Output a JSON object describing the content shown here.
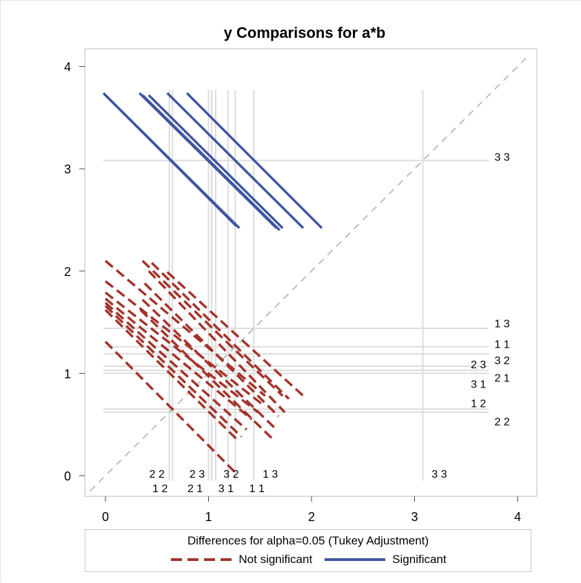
{
  "chart_data": {
    "type": "diffogram",
    "title": "y Comparisons for a*b",
    "xlim": [
      -0.2,
      4.1
    ],
    "ylim": [
      -0.2,
      4.15
    ],
    "xticks": [
      0,
      1,
      2,
      3,
      4
    ],
    "yticks": [
      0,
      1,
      2,
      3,
      4
    ],
    "grid": false,
    "colors": {
      "significant": "#3f56a0",
      "not_significant": "#a3342c",
      "reference_line": "#b0b0b0",
      "level_line": "#dcdcdc",
      "frame": "#b8b8b8"
    },
    "levels": [
      {
        "label": "1 1",
        "mean": 1.26
      },
      {
        "label": "1 2",
        "mean": 0.65
      },
      {
        "label": "1 3",
        "mean": 1.44
      },
      {
        "label": "2 1",
        "mean": 1.0
      },
      {
        "label": "2 2",
        "mean": 0.62
      },
      {
        "label": "2 3",
        "mean": 1.07
      },
      {
        "label": "3 1",
        "mean": 1.03
      },
      {
        "label": "3 2",
        "mean": 1.19
      },
      {
        "label": "3 3",
        "mean": 3.08
      }
    ],
    "significant_segments": [
      {
        "x1": -0.02,
        "y1": 3.74,
        "x2": 1.3,
        "y2": 2.42
      },
      {
        "x1": 0.0,
        "y1": 3.72,
        "x2": 1.27,
        "y2": 2.44
      },
      {
        "x1": 0.33,
        "y1": 3.74,
        "x2": 1.66,
        "y2": 2.42
      },
      {
        "x1": 0.36,
        "y1": 3.72,
        "x2": 1.69,
        "y2": 2.4
      },
      {
        "x1": 0.42,
        "y1": 3.72,
        "x2": 1.72,
        "y2": 2.42
      },
      {
        "x1": 0.6,
        "y1": 3.74,
        "x2": 1.92,
        "y2": 2.42
      },
      {
        "x1": 0.79,
        "y1": 3.74,
        "x2": 2.1,
        "y2": 2.42
      }
    ],
    "nonsignificant_segments": [
      {
        "x1": 0.0,
        "y1": 1.31,
        "x2": 1.28,
        "y2": 0.01
      },
      {
        "x1": 0.0,
        "y1": 1.62,
        "x2": 1.3,
        "y2": 0.33
      },
      {
        "x1": 0.0,
        "y1": 1.66,
        "x2": 1.32,
        "y2": 0.38
      },
      {
        "x1": 0.0,
        "y1": 1.69,
        "x2": 1.37,
        "y2": 0.45
      },
      {
        "x1": 0.0,
        "y1": 1.73,
        "x2": 1.42,
        "y2": 0.55
      },
      {
        "x1": 0.0,
        "y1": 1.79,
        "x2": 1.48,
        "y2": 0.62
      },
      {
        "x1": 0.0,
        "y1": 1.9,
        "x2": 1.52,
        "y2": 0.7
      },
      {
        "x1": 0.0,
        "y1": 2.1,
        "x2": 1.55,
        "y2": 0.78
      },
      {
        "x1": 0.34,
        "y1": 1.62,
        "x2": 1.62,
        "y2": 0.36
      },
      {
        "x1": 0.36,
        "y1": 1.72,
        "x2": 1.66,
        "y2": 0.45
      },
      {
        "x1": 0.38,
        "y1": 1.88,
        "x2": 1.68,
        "y2": 0.58
      },
      {
        "x1": 0.36,
        "y1": 2.1,
        "x2": 1.72,
        "y2": 0.78
      },
      {
        "x1": 0.45,
        "y1": 2.08,
        "x2": 1.78,
        "y2": 0.75
      },
      {
        "x1": 0.6,
        "y1": 1.99,
        "x2": 1.92,
        "y2": 0.78
      },
      {
        "x1": 0.42,
        "y1": 2.0,
        "x2": 1.74,
        "y2": 0.62
      }
    ],
    "legend": {
      "title": "Differences for alpha=0.05 (Tukey Adjustment)",
      "position": "bottom",
      "entries": [
        {
          "label": "Not significant",
          "style": "dashed"
        },
        {
          "label": "Significant",
          "style": "solid"
        }
      ]
    }
  }
}
